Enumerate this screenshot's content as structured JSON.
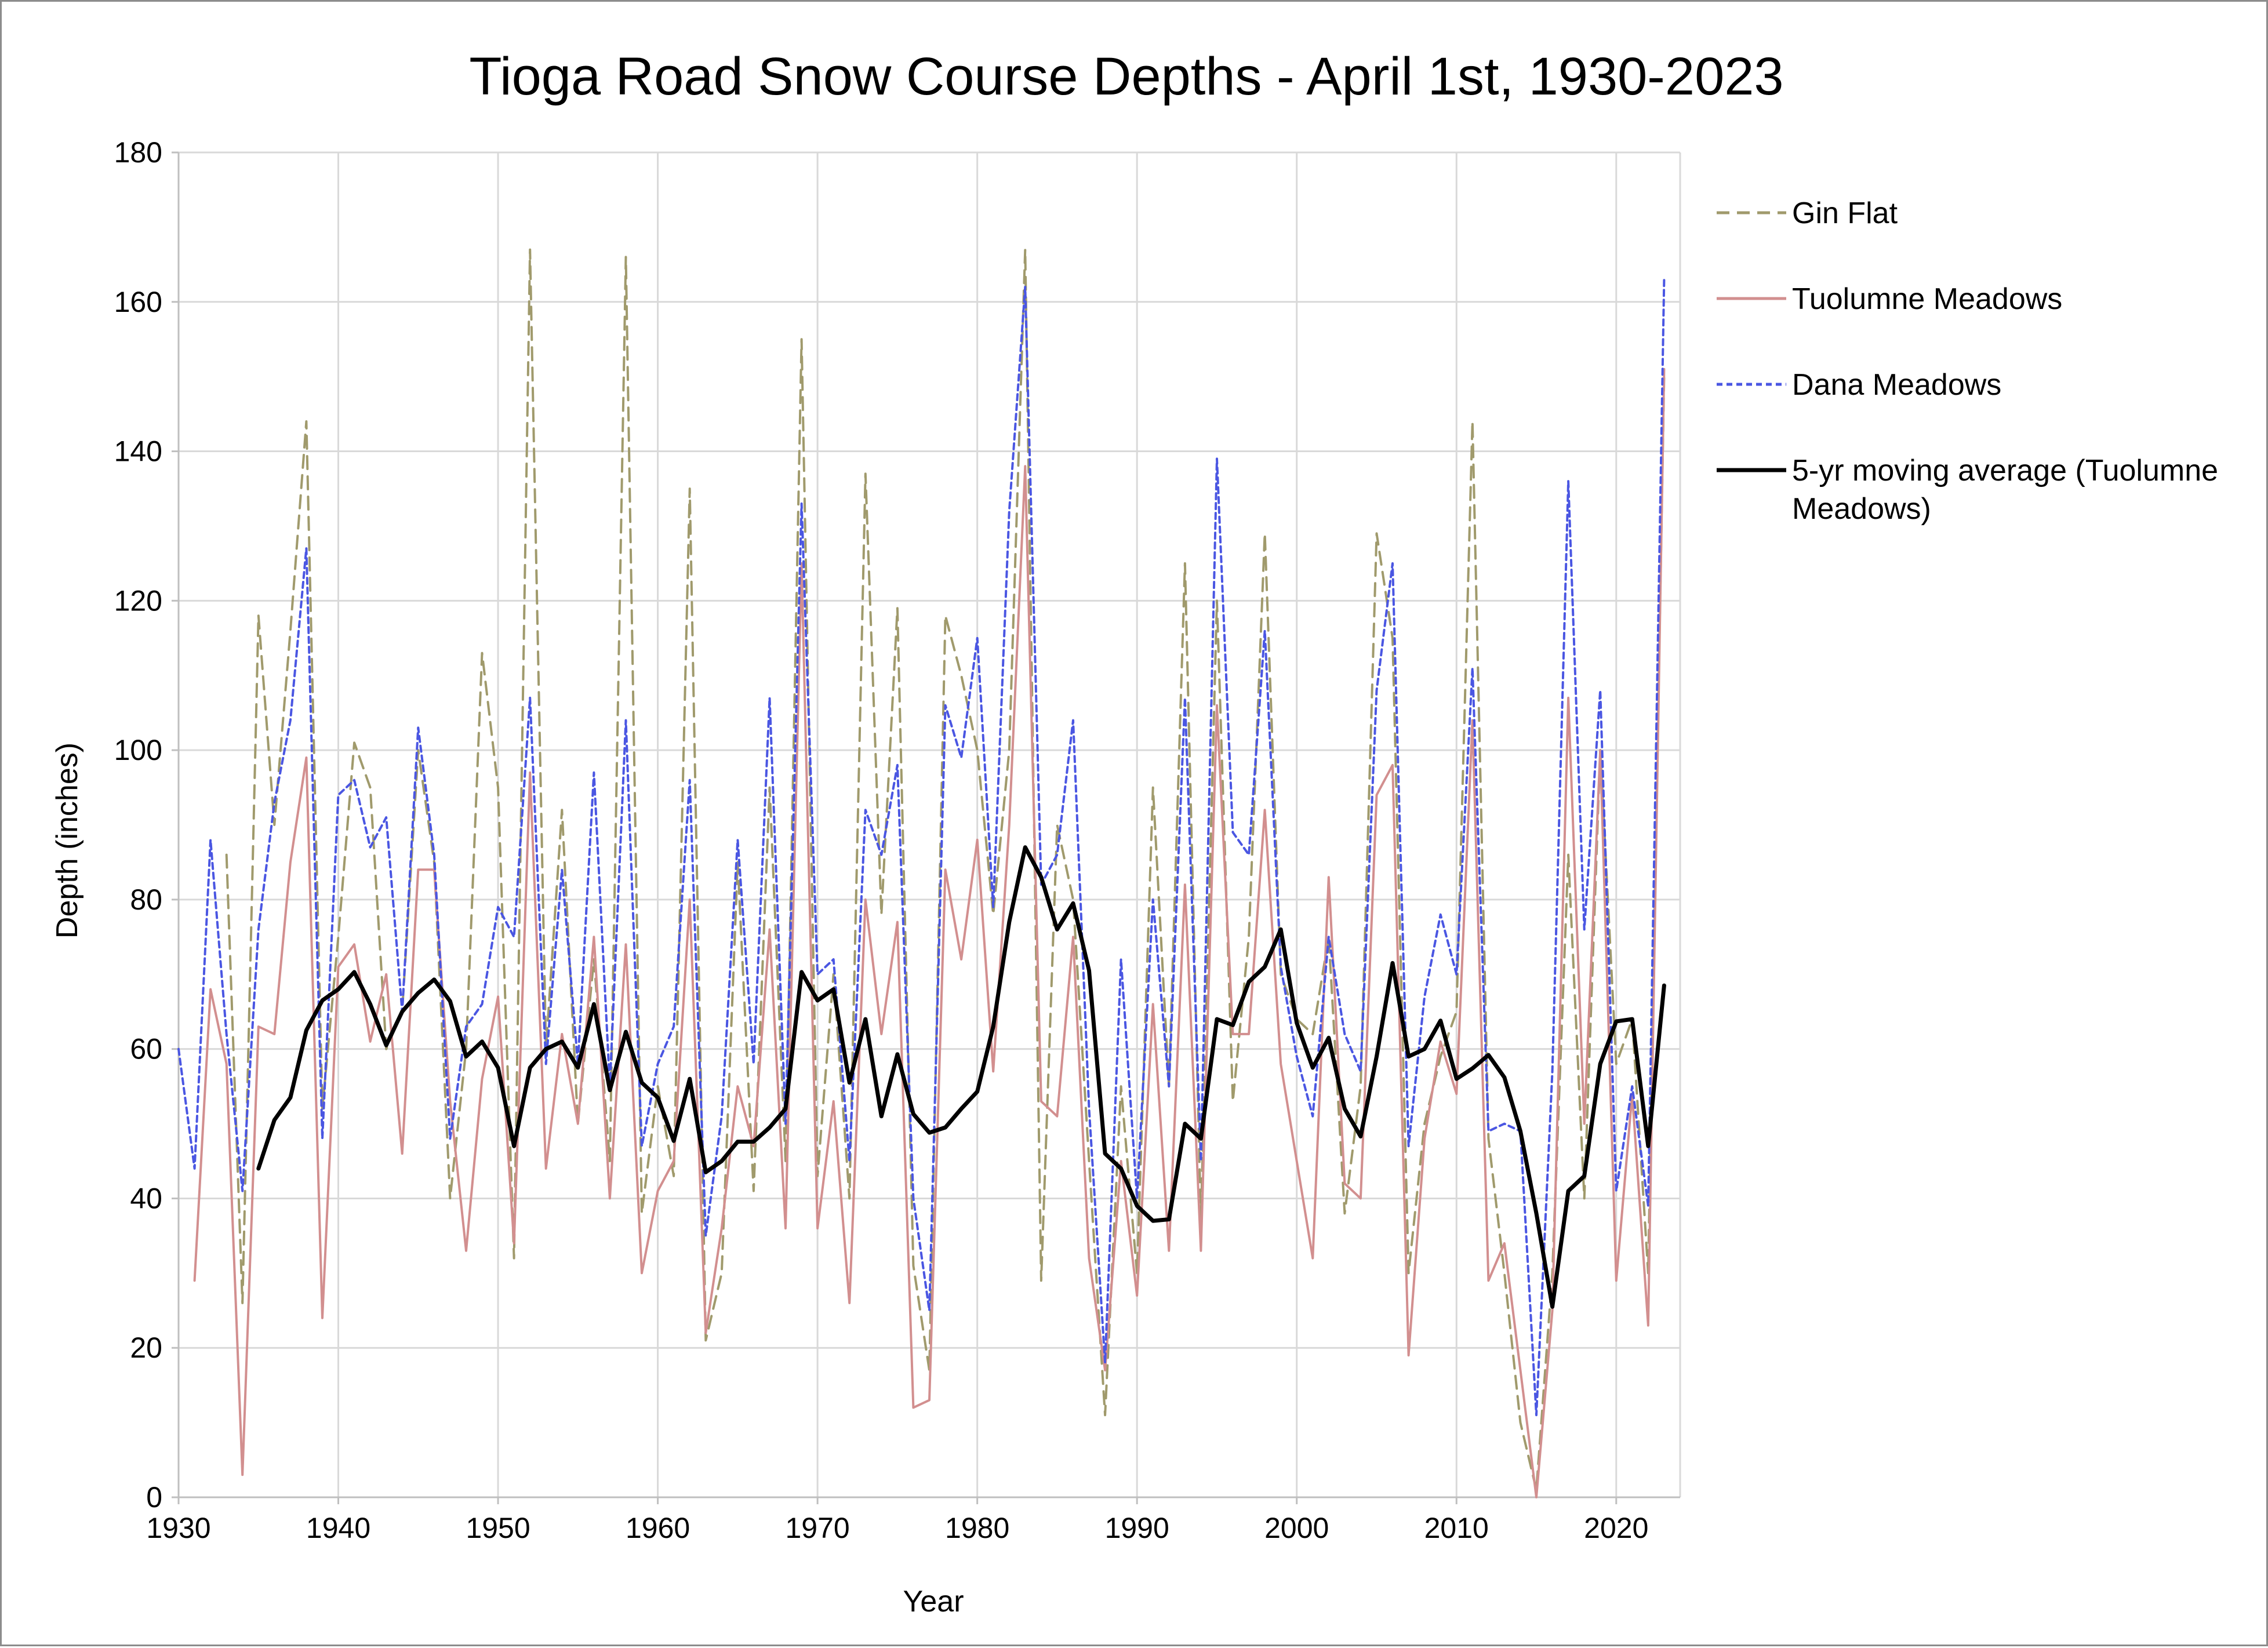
{
  "chart_data": {
    "type": "line",
    "title": "Tioga Road Snow Course Depths - April 1st, 1930-2023",
    "xlabel": "Year",
    "ylabel": "Depth (inches)",
    "xlim": [
      1930,
      2024
    ],
    "ylim": [
      0,
      180
    ],
    "x_ticks": [
      "1930",
      "1940",
      "1950",
      "1960",
      "1970",
      "1980",
      "1990",
      "2000",
      "2010",
      "2020"
    ],
    "y_ticks": [
      "0",
      "20",
      "40",
      "60",
      "80",
      "100",
      "120",
      "140",
      "160",
      "180"
    ],
    "grid": true,
    "legend_position": "right",
    "legend": [
      {
        "label": "Gin Flat"
      },
      {
        "label": "Tuolumne Meadows"
      },
      {
        "label": "Dana Meadows"
      },
      {
        "label": "5-yr moving average (Tuolumne",
        "label_line2": "Meadows)"
      }
    ],
    "series": [
      {
        "name": "Gin Flat",
        "color": "#a09a6c",
        "dash": "dashed",
        "x": [
          1930,
          1931,
          1932,
          1933,
          1934,
          1935,
          1936,
          1937,
          1938,
          1939,
          1940,
          1941,
          1942,
          1943,
          1944,
          1945,
          1946,
          1947,
          1948,
          1949,
          1950,
          1951,
          1952,
          1953,
          1954,
          1955,
          1956,
          1957,
          1958,
          1959,
          1960,
          1961,
          1962,
          1963,
          1964,
          1965,
          1966,
          1967,
          1968,
          1969,
          1970,
          1971,
          1972,
          1973,
          1974,
          1975,
          1976,
          1977,
          1978,
          1979,
          1980,
          1981,
          1982,
          1983,
          1984,
          1985,
          1986,
          1987,
          1988,
          1989,
          1990,
          1991,
          1992,
          1993,
          1994,
          1995,
          1996,
          1997,
          1998,
          1999,
          2000,
          2001,
          2002,
          2003,
          2004,
          2005,
          2006,
          2007,
          2008,
          2009,
          2010,
          2011,
          2012,
          2013,
          2014,
          2015,
          2016,
          2017,
          2018,
          2019,
          2020,
          2021,
          2022,
          2023
        ],
        "values": [
          null,
          null,
          null,
          86,
          26,
          118,
          90,
          116,
          144,
          52,
          75,
          101,
          95,
          60,
          65,
          100,
          85,
          40,
          60,
          113,
          95,
          32,
          167,
          60,
          92,
          50,
          72,
          45,
          166,
          38,
          55,
          43,
          135,
          21,
          30,
          85,
          41,
          95,
          45,
          155,
          43,
          70,
          40,
          137,
          78,
          119,
          31,
          17,
          118,
          110,
          100,
          78,
          100,
          167,
          29,
          90,
          80,
          45,
          11,
          55,
          30,
          95,
          55,
          125,
          37,
          120,
          53,
          75,
          129,
          70,
          64,
          62,
          75,
          38,
          55,
          129,
          115,
          30,
          50,
          59,
          65,
          144,
          48,
          30,
          10,
          1,
          30,
          86,
          40,
          100,
          58,
          64,
          30,
          150
        ]
      },
      {
        "name": "Tuolumne Meadows",
        "color": "#d28f8f",
        "dash": "solid",
        "x": [
          1930,
          1931,
          1932,
          1933,
          1934,
          1935,
          1936,
          1937,
          1938,
          1939,
          1940,
          1941,
          1942,
          1943,
          1944,
          1945,
          1946,
          1947,
          1948,
          1949,
          1950,
          1951,
          1952,
          1953,
          1954,
          1955,
          1956,
          1957,
          1958,
          1959,
          1960,
          1961,
          1962,
          1963,
          1964,
          1965,
          1966,
          1967,
          1968,
          1969,
          1970,
          1971,
          1972,
          1973,
          1974,
          1975,
          1976,
          1977,
          1978,
          1979,
          1980,
          1981,
          1982,
          1983,
          1984,
          1985,
          1986,
          1987,
          1988,
          1989,
          1990,
          1991,
          1992,
          1993,
          1994,
          1995,
          1996,
          1997,
          1998,
          1999,
          2000,
          2001,
          2002,
          2003,
          2004,
          2005,
          2006,
          2007,
          2008,
          2009,
          2010,
          2011,
          2012,
          2013,
          2014,
          2015,
          2016,
          2017,
          2018,
          2019,
          2020,
          2021,
          2022,
          2023
        ],
        "values": [
          null,
          29,
          68,
          58,
          3,
          63,
          62,
          85,
          99,
          24,
          71,
          74,
          61,
          70,
          46,
          84,
          84,
          53,
          33,
          56,
          67,
          34,
          97,
          44,
          62,
          50,
          75,
          40,
          74,
          30,
          41,
          45,
          80,
          22,
          36,
          55,
          47,
          76,
          36,
          125,
          36,
          53,
          26,
          80,
          62,
          77,
          12,
          13,
          84,
          72,
          88,
          57,
          90,
          138,
          53,
          51,
          75,
          32,
          17,
          45,
          27,
          66,
          33,
          82,
          33,
          106,
          62,
          62,
          92,
          58,
          45,
          32,
          83,
          42,
          40,
          94,
          98,
          19,
          48,
          61,
          54,
          104,
          29,
          34,
          17,
          0,
          25,
          107,
          50,
          100,
          29,
          54,
          23,
          151
        ]
      },
      {
        "name": "Dana Meadows",
        "color": "#4a56e2",
        "dash": "dotted",
        "x": [
          1930,
          1931,
          1932,
          1933,
          1934,
          1935,
          1936,
          1937,
          1938,
          1939,
          1940,
          1941,
          1942,
          1943,
          1944,
          1945,
          1946,
          1947,
          1948,
          1949,
          1950,
          1951,
          1952,
          1953,
          1954,
          1955,
          1956,
          1957,
          1958,
          1959,
          1960,
          1961,
          1962,
          1963,
          1964,
          1965,
          1966,
          1967,
          1968,
          1969,
          1970,
          1971,
          1972,
          1973,
          1974,
          1975,
          1976,
          1977,
          1978,
          1979,
          1980,
          1981,
          1982,
          1983,
          1984,
          1985,
          1986,
          1987,
          1988,
          1989,
          1990,
          1991,
          1992,
          1993,
          1994,
          1995,
          1996,
          1997,
          1998,
          1999,
          2000,
          2001,
          2002,
          2003,
          2004,
          2005,
          2006,
          2007,
          2008,
          2009,
          2010,
          2011,
          2012,
          2013,
          2014,
          2015,
          2016,
          2017,
          2018,
          2019,
          2020,
          2021,
          2022,
          2023
        ],
        "values": [
          60,
          44,
          88,
          62,
          41,
          76,
          93,
          104,
          127,
          48,
          94,
          96,
          87,
          91,
          65,
          103,
          86,
          48,
          63,
          66,
          79,
          75,
          107,
          58,
          84,
          58,
          97,
          55,
          104,
          47,
          58,
          63,
          96,
          35,
          51,
          88,
          58,
          107,
          50,
          133,
          70,
          72,
          45,
          92,
          86,
          98,
          40,
          25,
          106,
          99,
          115,
          79,
          132,
          162,
          82,
          86,
          104,
          52,
          18,
          72,
          40,
          80,
          55,
          107,
          45,
          139,
          89,
          86,
          116,
          71,
          59,
          51,
          75,
          62,
          57,
          108,
          125,
          47,
          67,
          78,
          70,
          111,
          49,
          50,
          49,
          11,
          57,
          136,
          76,
          108,
          41,
          55,
          39,
          163
        ]
      },
      {
        "name": "5-yr moving average (Tuolumne Meadows)",
        "color": "#000000",
        "dash": "solid",
        "x": [
          1935,
          1936,
          1937,
          1938,
          1939,
          1940,
          1941,
          1942,
          1943,
          1944,
          1945,
          1946,
          1947,
          1948,
          1949,
          1950,
          1951,
          1952,
          1953,
          1954,
          1955,
          1956,
          1957,
          1958,
          1959,
          1960,
          1961,
          1962,
          1963,
          1964,
          1965,
          1966,
          1967,
          1968,
          1969,
          1970,
          1971,
          1972,
          1973,
          1974,
          1975,
          1976,
          1977,
          1978,
          1979,
          1980,
          1981,
          1982,
          1983,
          1984,
          1985,
          1986,
          1987,
          1988,
          1989,
          1990,
          1991,
          1992,
          1993,
          1994,
          1995,
          1996,
          1997,
          1998,
          1999,
          2000,
          2001,
          2002,
          2003,
          2004,
          2005,
          2006,
          2007,
          2008,
          2009,
          2010,
          2011,
          2012,
          2013,
          2014,
          2015,
          2016,
          2017,
          2018,
          2019,
          2020,
          2021,
          2022,
          2023
        ],
        "values": [
          44,
          50.5,
          53.5,
          62.5,
          66.5,
          68,
          70.3,
          66,
          60.5,
          65,
          67.5,
          69.3,
          66.4,
          59,
          61,
          57.5,
          47,
          57.5,
          60,
          61,
          57.5,
          66,
          54.5,
          62.3,
          55.5,
          53.5,
          47.7,
          56,
          43.5,
          45,
          47.6,
          47.6,
          49.5,
          52,
          70.3,
          66.5,
          68,
          55.5,
          64,
          51,
          59.3,
          51.3,
          48.8,
          49.5,
          52,
          54.3,
          63,
          77,
          87,
          83,
          76,
          79.5,
          70.5,
          46,
          44,
          39,
          37,
          37.2,
          50,
          48,
          64,
          63.2,
          69,
          71,
          76,
          63.5,
          57.5,
          61.5,
          52,
          48.3,
          59,
          71.5,
          59,
          60,
          63.8,
          56,
          57.4,
          59.2,
          56.2,
          49,
          38,
          25.5,
          41,
          43,
          58,
          63.7,
          64,
          47,
          68.5
        ]
      }
    ]
  }
}
